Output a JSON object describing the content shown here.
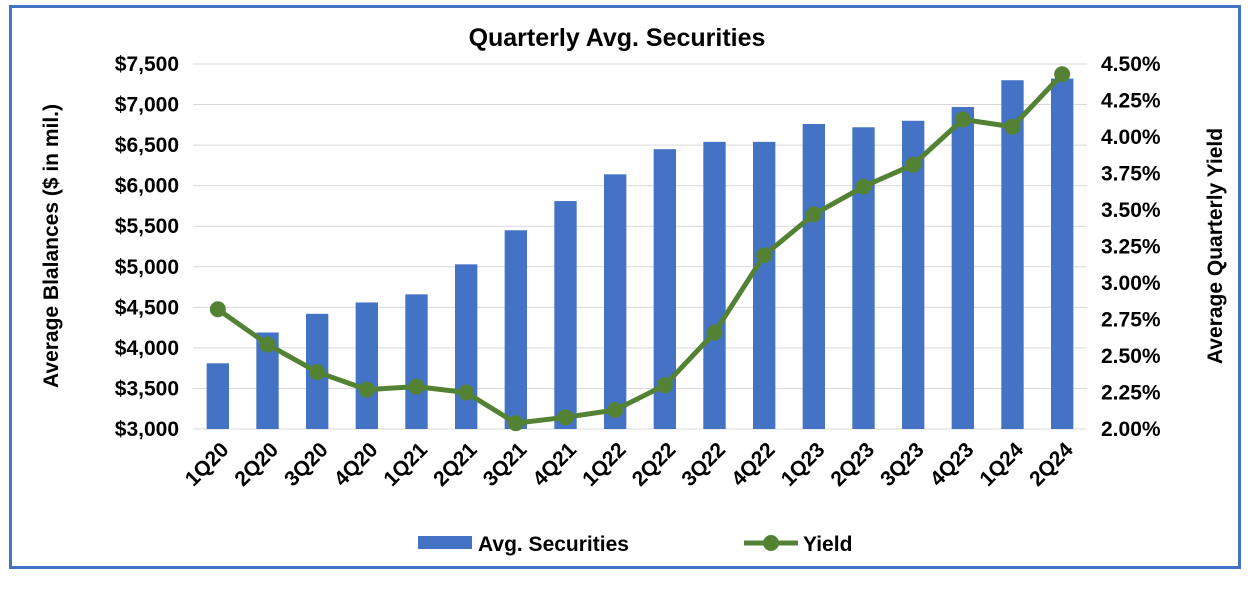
{
  "chart_data": {
    "type": "bar",
    "title": "Quarterly Avg. Securities",
    "categories": [
      "1Q20",
      "2Q20",
      "3Q20",
      "4Q20",
      "1Q21",
      "2Q21",
      "3Q21",
      "4Q21",
      "1Q22",
      "2Q22",
      "3Q22",
      "4Q22",
      "1Q23",
      "2Q23",
      "3Q23",
      "4Q23",
      "1Q24",
      "2Q24"
    ],
    "series": [
      {
        "name": "Avg. Securities",
        "type": "bar",
        "axis": "left",
        "color": "#4472c4",
        "values": [
          3810,
          4190,
          4420,
          4560,
          4660,
          5030,
          5450,
          5810,
          6140,
          6450,
          6540,
          6540,
          6760,
          6720,
          6800,
          6970,
          7300,
          7320
        ]
      },
      {
        "name": "Yield",
        "type": "line",
        "axis": "right",
        "color": "#548235",
        "values": [
          2.82,
          2.58,
          2.39,
          2.27,
          2.29,
          2.25,
          2.04,
          2.08,
          2.13,
          2.3,
          2.66,
          3.19,
          3.47,
          3.66,
          3.81,
          4.12,
          4.07,
          4.43
        ]
      }
    ],
    "ylabel": "Average Blalances ($ in mil.)",
    "ylabel_right": "Average Quarterly Yield",
    "ylim": [
      3000,
      7500
    ],
    "ylim_right": [
      2.0,
      4.5
    ],
    "yticks": [
      "$3,000",
      "$3,500",
      "$4,000",
      "$4,500",
      "$5,000",
      "$5,500",
      "$6,000",
      "$6,500",
      "$7,000",
      "$7,500"
    ],
    "yticks_right": [
      "2.00%",
      "2.25%",
      "2.50%",
      "2.75%",
      "3.00%",
      "3.25%",
      "3.50%",
      "3.75%",
      "4.00%",
      "4.25%",
      "4.50%"
    ],
    "grid": true,
    "legend": "bottom"
  }
}
